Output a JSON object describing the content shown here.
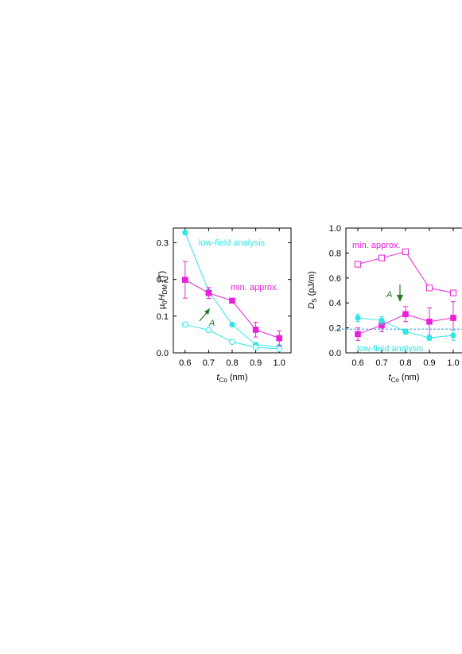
{
  "colors": {
    "cyan": "#2ee6e6",
    "magenta": "#e621d9",
    "green": "#1e7a1e",
    "dashed": "#3aa8e6"
  },
  "chart_data": [
    {
      "type": "line",
      "ylabel": {
        "main": "μ",
        "sub0": "0",
        "italic": "H",
        "sub1": "DM",
        "unit": " (T)"
      },
      "xlabel": {
        "italic": "t",
        "sub": "Co",
        "unit": " (nm)"
      },
      "xlim": [
        0.55,
        1.05
      ],
      "ylim": [
        0,
        0.34
      ],
      "xticks": [
        "0.6",
        "0.7",
        "0.8",
        "0.9",
        "1.0"
      ],
      "xtick_values": [
        0.6,
        0.7,
        0.8,
        0.9,
        1.0
      ],
      "yticks": [
        "0.0",
        "0.1",
        "0.2",
        "0.3"
      ],
      "ytick_values": [
        0,
        0.1,
        0.2,
        0.3
      ],
      "x": [
        0.6,
        0.7,
        0.8,
        0.9,
        1.0
      ],
      "series": [
        {
          "marker": "filled-circle",
          "color": "cyan",
          "values": [
            0.328,
            0.168,
            0.077,
            0.022,
            0.016
          ]
        },
        {
          "marker": "open-circle",
          "color": "cyan",
          "values": [
            0.077,
            0.062,
            0.03,
            0.015,
            0.011
          ]
        },
        {
          "marker": "filled-square",
          "color": "magenta",
          "values": [
            0.199,
            0.163,
            0.142,
            0.063,
            0.04
          ],
          "errors": [
            0.05,
            0.015,
            0.005,
            0.02,
            0.02
          ]
        }
      ],
      "annotations": {
        "low_field": "low-field analysis",
        "min_approx": "min. approx.",
        "A": "A"
      }
    },
    {
      "type": "line",
      "ylabel": {
        "italic": "D",
        "sub": "S",
        "unit": " (pJ/m)"
      },
      "xlabel": {
        "italic": "t",
        "sub": "Co",
        "unit": " (nm)"
      },
      "xlim": [
        0.55,
        1.05
      ],
      "ylim": [
        0,
        1.0
      ],
      "xticks": [
        "0.6",
        "0.7",
        "0.8",
        "0.9",
        "1.0"
      ],
      "xtick_values": [
        0.6,
        0.7,
        0.8,
        0.9,
        1.0
      ],
      "yticks": [
        "0.0",
        "0.2",
        "0.4",
        "0.6",
        "0.8",
        "1.0"
      ],
      "ytick_values": [
        0,
        0.2,
        0.4,
        0.6,
        0.8,
        1.0
      ],
      "x": [
        0.6,
        0.7,
        0.8,
        0.9,
        1.0
      ],
      "dashed_line_y": 0.19,
      "series": [
        {
          "marker": "open-square",
          "color": "magenta",
          "values": [
            0.71,
            0.76,
            0.81,
            0.52,
            0.48
          ]
        },
        {
          "marker": "filled-square",
          "color": "magenta",
          "values": [
            0.15,
            0.22,
            0.31,
            0.25,
            0.28
          ],
          "errors": [
            0.05,
            0.05,
            0.06,
            0.11,
            0.13
          ]
        },
        {
          "marker": "filled-circle",
          "color": "cyan",
          "values": [
            0.28,
            0.26,
            0.17,
            0.12,
            0.14
          ],
          "errors": [
            0.03,
            0.03,
            0.02,
            0.02,
            0.04
          ]
        }
      ],
      "annotations": {
        "low_field": "low-field analysis",
        "min_approx": "min. approx.",
        "A": "A"
      }
    }
  ]
}
